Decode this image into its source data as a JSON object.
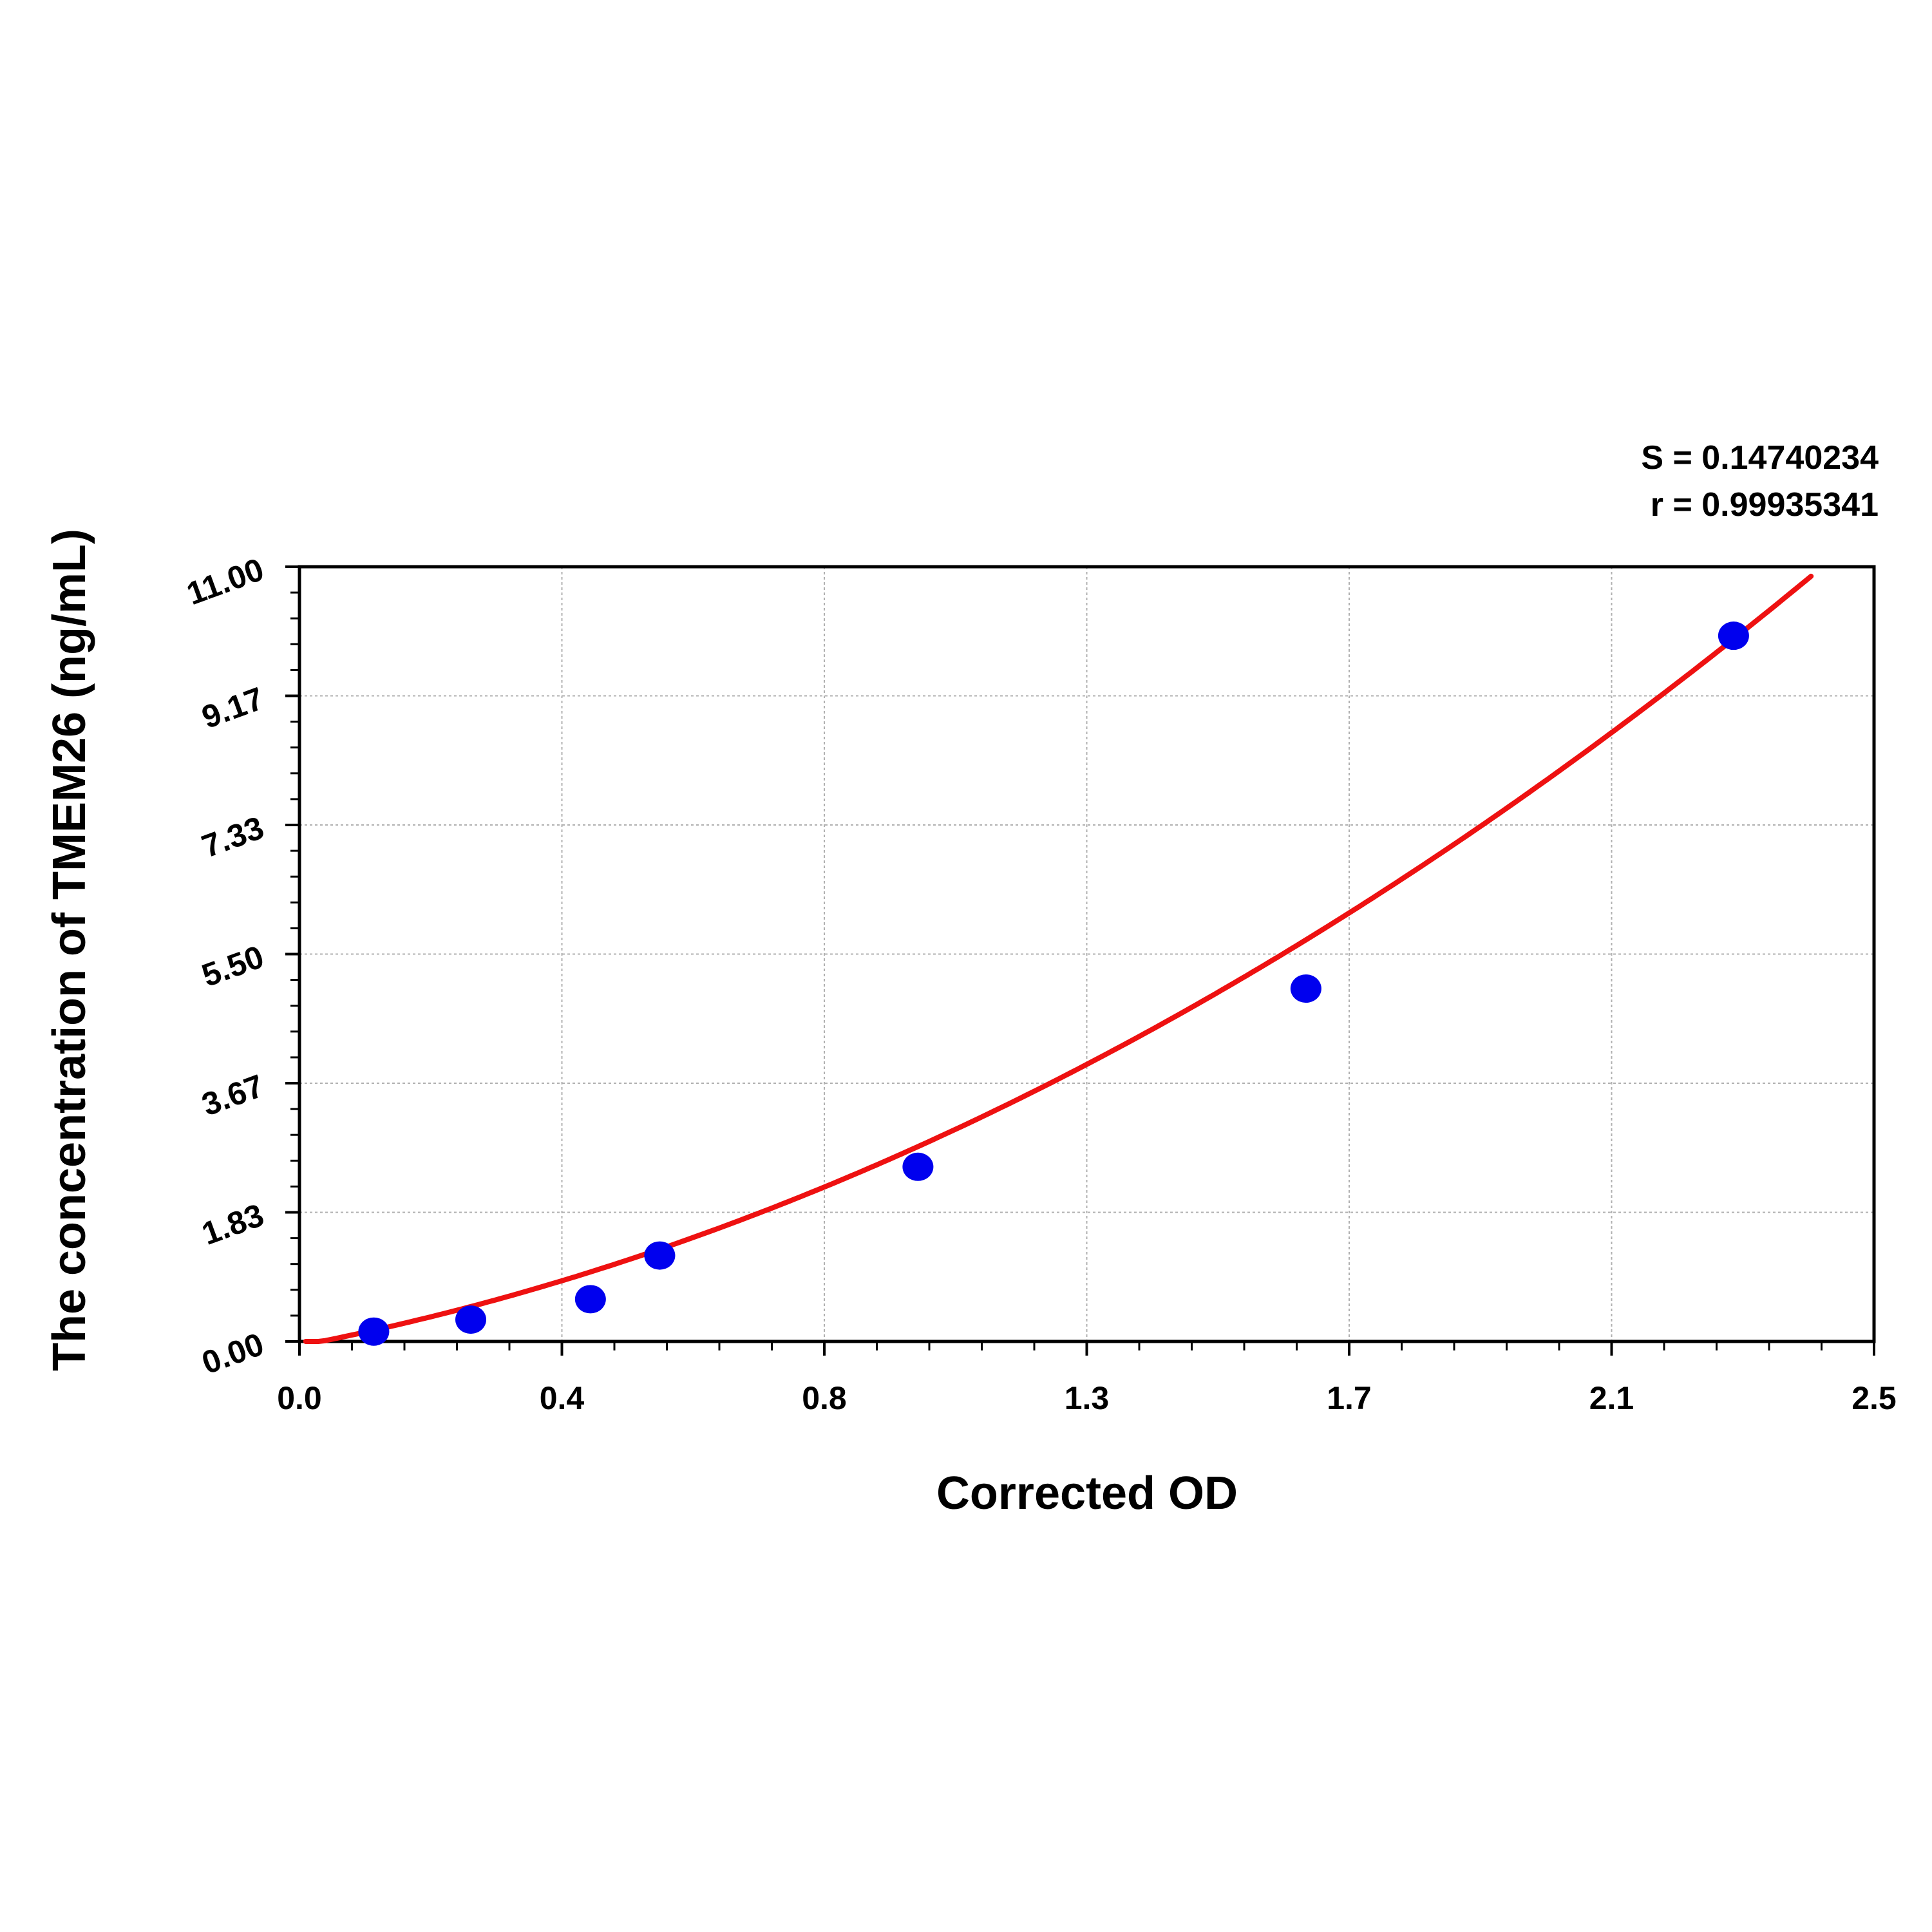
{
  "chart_data": {
    "type": "scatter",
    "title": "",
    "xlabel": "Corrected OD",
    "ylabel": "The concentration of TMEM26 (ng/mL)",
    "xlim": [
      0,
      2.5
    ],
    "ylim": [
      0,
      11
    ],
    "x_ticks": [
      "0.0",
      "0.4",
      "0.8",
      "1.3",
      "1.7",
      "2.1",
      "2.5"
    ],
    "y_ticks": [
      "0.00",
      "1.83",
      "3.67",
      "5.50",
      "7.33",
      "9.17",
      "11.00"
    ],
    "grid": true,
    "stats": {
      "s_label": "S = 0.14740234",
      "r_label": "r = 0.99935341"
    },
    "series": [
      {
        "type": "scatter",
        "color": "#0000ee",
        "x": [
          0.118,
          0.272,
          0.462,
          0.572,
          0.982,
          1.598,
          2.277
        ],
        "y": [
          0.14,
          0.31,
          0.6,
          1.22,
          2.48,
          5.01,
          10.02
        ]
      },
      {
        "type": "line",
        "color": "#ee1111",
        "fit": "quadratic",
        "coefficients": {
          "a": 1.18,
          "b": 1.72,
          "c": -0.06
        },
        "x_range": [
          0.01,
          2.4
        ]
      }
    ]
  }
}
